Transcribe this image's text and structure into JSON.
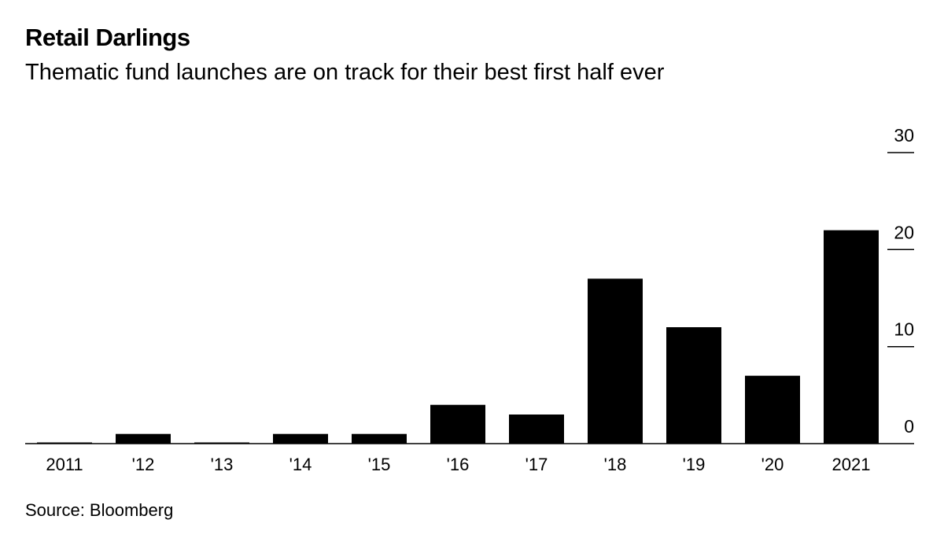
{
  "header": {
    "title": "Retail Darlings",
    "subtitle": "Thematic fund launches are on track for their best first half ever"
  },
  "footer": {
    "source": "Source: Bloomberg"
  },
  "colors": {
    "bar": "#000000",
    "background": "#ffffff",
    "text": "#000000"
  },
  "chart_data": {
    "type": "bar",
    "title": "Retail Darlings",
    "subtitle": "Thematic fund launches are on track for their best first half ever",
    "categories": [
      "2011",
      "'12",
      "'13",
      "'14",
      "'15",
      "'16",
      "'17",
      "'18",
      "'19",
      "'20",
      "2021"
    ],
    "values": [
      0,
      1,
      0,
      1,
      1,
      4,
      3,
      17,
      12,
      7,
      22
    ],
    "ylim": [
      0,
      30
    ],
    "yticks": [
      0,
      10,
      20,
      30
    ],
    "y_axis_position": "right",
    "grid": false,
    "xlabel": "",
    "ylabel": ""
  }
}
